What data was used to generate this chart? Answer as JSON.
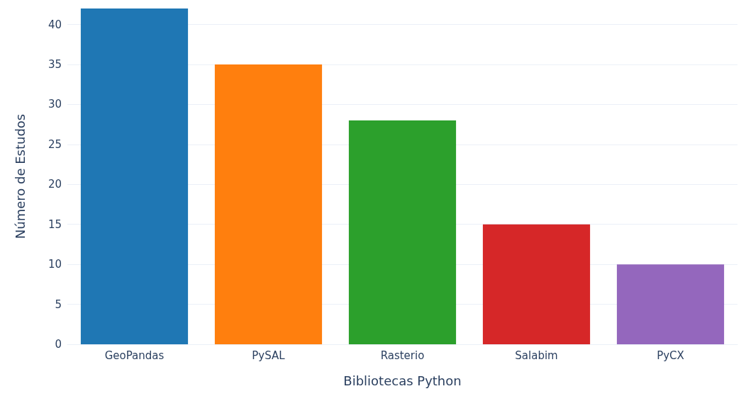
{
  "chart_data": {
    "type": "bar",
    "xlabel": "Bibliotecas Python",
    "ylabel": "Número de Estudos",
    "categories": [
      "GeoPandas",
      "PySAL",
      "Rasterio",
      "Salabim",
      "PyCX"
    ],
    "values": [
      42,
      35,
      28,
      15,
      10
    ],
    "colors": [
      "#1f77b4",
      "#ff7f0e",
      "#2ca02c",
      "#d62728",
      "#9467bd"
    ],
    "ylim": [
      0,
      42
    ],
    "yticks": [
      0,
      5,
      10,
      15,
      20,
      25,
      30,
      35,
      40
    ],
    "grid": "y"
  }
}
